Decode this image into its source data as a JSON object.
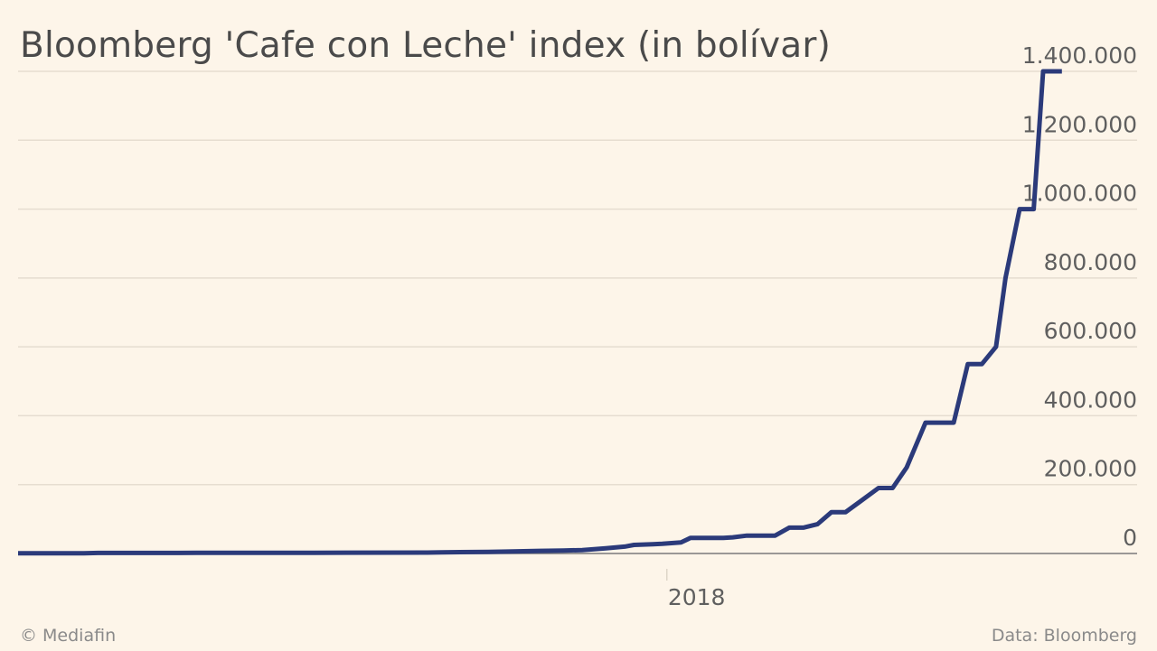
{
  "chart_data": {
    "type": "line",
    "title": "Bloomberg 'Cafe con Leche' index (in bolívar)",
    "ylim": [
      0,
      1400000
    ],
    "y_ticks": [
      {
        "value": 0,
        "label": "0"
      },
      {
        "value": 200000,
        "label": "200.000"
      },
      {
        "value": 400000,
        "label": "400.000"
      },
      {
        "value": 600000,
        "label": "600.000"
      },
      {
        "value": 800000,
        "label": "800.000"
      },
      {
        "value": 1000000,
        "label": "1.000.000"
      },
      {
        "value": 1200000,
        "label": "1.200.000"
      },
      {
        "value": 1400000,
        "label": "1.400.000"
      }
    ],
    "x_ticks": [
      {
        "value": 2018.0,
        "label": "2018"
      }
    ],
    "xlim": [
      2016.62,
      2019.0
    ],
    "grid": true,
    "series": [
      {
        "color": "#2b3a7a",
        "points": [
          [
            2016.62,
            500
          ],
          [
            2016.76,
            600
          ],
          [
            2016.79,
            1500
          ],
          [
            2016.96,
            1700
          ],
          [
            2017.0,
            1900
          ],
          [
            2017.25,
            2000
          ],
          [
            2017.49,
            2500
          ],
          [
            2017.52,
            3500
          ],
          [
            2017.62,
            4500
          ],
          [
            2017.66,
            5500
          ],
          [
            2017.73,
            7500
          ],
          [
            2017.78,
            8500
          ],
          [
            2017.82,
            10000
          ],
          [
            2017.87,
            15000
          ],
          [
            2017.91,
            20000
          ],
          [
            2017.93,
            25000
          ],
          [
            2017.97,
            27000
          ],
          [
            2017.99,
            28000
          ],
          [
            2018.03,
            32000
          ],
          [
            2018.05,
            45000
          ],
          [
            2018.12,
            45000
          ],
          [
            2018.14,
            47000
          ],
          [
            2018.17,
            52000
          ],
          [
            2018.23,
            52000
          ],
          [
            2018.26,
            75000
          ],
          [
            2018.29,
            75000
          ],
          [
            2018.32,
            85000
          ],
          [
            2018.35,
            120000
          ],
          [
            2018.38,
            120000
          ],
          [
            2018.41,
            150000
          ],
          [
            2018.45,
            190000
          ],
          [
            2018.48,
            190000
          ],
          [
            2018.51,
            250000
          ],
          [
            2018.55,
            380000
          ],
          [
            2018.61,
            380000
          ],
          [
            2018.64,
            550000
          ],
          [
            2018.67,
            550000
          ],
          [
            2018.7,
            600000
          ],
          [
            2018.72,
            800000
          ],
          [
            2018.75,
            1000000
          ],
          [
            2018.78,
            1000000
          ],
          [
            2018.8,
            1400000
          ],
          [
            2018.84,
            1400000
          ]
        ]
      }
    ]
  },
  "footer": {
    "credit": "© Mediafin",
    "source": "Data: Bloomberg"
  }
}
